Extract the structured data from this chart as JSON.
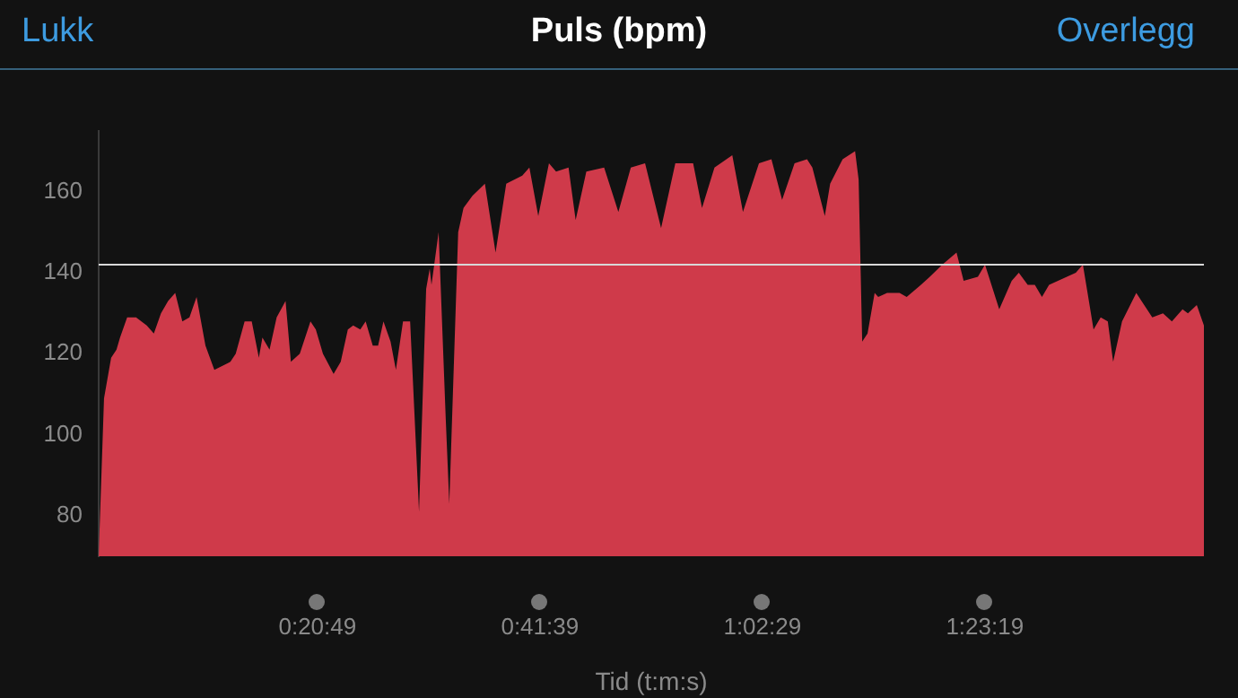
{
  "chart_data": {
    "type": "area",
    "title": "Puls (bpm)",
    "xlabel": "Tid (t:m:s)",
    "annotations": [
      "Lukk",
      "Overlegg"
    ],
    "x": [
      20,
      50,
      90,
      120,
      140,
      180,
      230,
      290,
      330,
      370,
      410,
      450,
      490,
      530,
      570,
      620,
      670,
      760,
      790,
      840,
      880,
      920,
      940,
      980,
      1020,
      1070,
      1100,
      1150,
      1210,
      1240,
      1280,
      1340,
      1380,
      1420,
      1450,
      1490,
      1520,
      1560,
      1590,
      1620,
      1660,
      1690,
      1730,
      1770,
      1820,
      1860,
      1880,
      1890,
      1930,
      1970,
      1990,
      2040,
      2070,
      2120,
      2190,
      2250,
      2310,
      2400,
      2440,
      2490,
      2550,
      2590,
      2660,
      2700,
      2760,
      2860,
      2940,
      3010,
      3090,
      3180,
      3260,
      3360,
      3410,
      3480,
      3580,
      3640,
      3730,
      3800,
      3860,
      3930,
      4000,
      4030,
      4100,
      4130,
      4200,
      4270,
      4290,
      4310,
      4340,
      4380,
      4400,
      4450,
      4520,
      4560,
      4640,
      4690,
      4760,
      4840,
      4880,
      4960,
      5000,
      5080,
      5150,
      5190,
      5240,
      5280,
      5320,
      5360,
      5410,
      5460,
      5510,
      5550,
      5580,
      5610,
      5650,
      5690,
      5720,
      5770,
      5850,
      5940,
      6000,
      6050,
      6110,
      6140,
      6190,
      6230
    ],
    "series": [
      {
        "color": "#cf3a4a",
        "values": [
          70,
          109,
          119,
          121,
          124,
          129,
          129,
          127,
          125,
          130,
          133,
          135,
          128,
          129,
          134,
          122,
          116,
          118,
          120,
          128,
          128,
          119,
          124,
          121,
          129,
          133,
          118,
          120,
          128,
          126,
          120,
          115,
          118,
          126,
          127,
          126,
          128,
          122,
          122,
          128,
          123,
          116,
          128,
          128,
          81,
          136,
          141,
          137,
          150,
          104,
          83,
          150,
          156,
          159,
          162,
          145,
          162,
          164,
          166,
          154,
          167,
          165,
          166,
          153,
          165,
          166,
          155,
          166,
          167,
          151,
          167,
          167,
          156,
          166,
          169,
          155,
          167,
          168,
          158,
          167,
          168,
          166,
          154,
          162,
          168,
          170,
          163,
          123,
          125,
          135,
          134,
          135,
          135,
          134,
          137,
          139,
          142,
          145,
          138,
          139,
          142,
          131,
          138,
          140,
          137,
          137,
          134,
          137,
          138,
          139,
          140,
          142,
          134,
          126,
          129,
          128,
          118,
          128,
          135,
          129,
          130,
          128,
          131,
          130,
          132,
          127
        ]
      }
    ],
    "xlim": [
      20,
      6230
    ],
    "xticks": [
      {
        "value": 1249,
        "label": "0:20:49"
      },
      {
        "value": 2499,
        "label": "0:41:39"
      },
      {
        "value": 3749,
        "label": "1:02:29"
      },
      {
        "value": 4999,
        "label": "1:23:19"
      }
    ],
    "ylim": [
      70,
      175
    ],
    "yticks": [
      80,
      100,
      120,
      140,
      160
    ],
    "ref_lines": [
      {
        "axis": "y",
        "value": 142,
        "color": "#d8d8d8"
      }
    ],
    "grid": false,
    "legend": false
  }
}
